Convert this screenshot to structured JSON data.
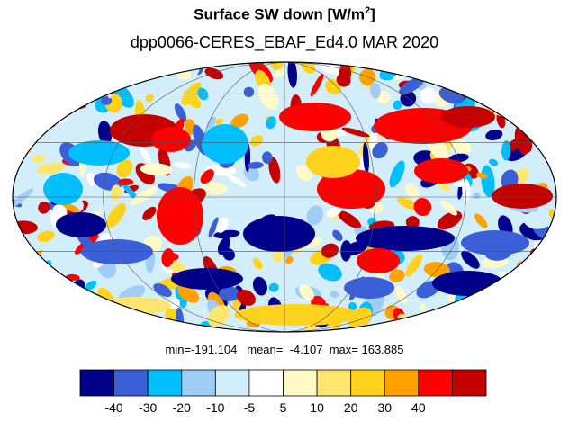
{
  "title": {
    "main": "Surface SW down [W/m",
    "superscript": "2",
    "close": "]"
  },
  "subtitle": "dpp0066-CERES_EBAF_Ed4.0  MAR 2020",
  "stats": {
    "min_label": "min=",
    "min_value": "-191.104",
    "mean_label": "mean=",
    "mean_value": "-4.107",
    "max_label": "max=",
    "max_value": "163.885"
  },
  "colorbar": {
    "colors": [
      "#00008b",
      "#3a5fd6",
      "#00bfff",
      "#9fcdf5",
      "#d3eefb",
      "#ffffff",
      "#fffac8",
      "#ffe66e",
      "#ffd21e",
      "#ffa200",
      "#ff0000",
      "#c40000"
    ],
    "tick_labels": [
      "-40",
      "-30",
      "-20",
      "-10",
      "-5",
      "5",
      "10",
      "20",
      "30",
      "40"
    ]
  },
  "map": {
    "projection": "mollweide",
    "graticule": true
  }
}
